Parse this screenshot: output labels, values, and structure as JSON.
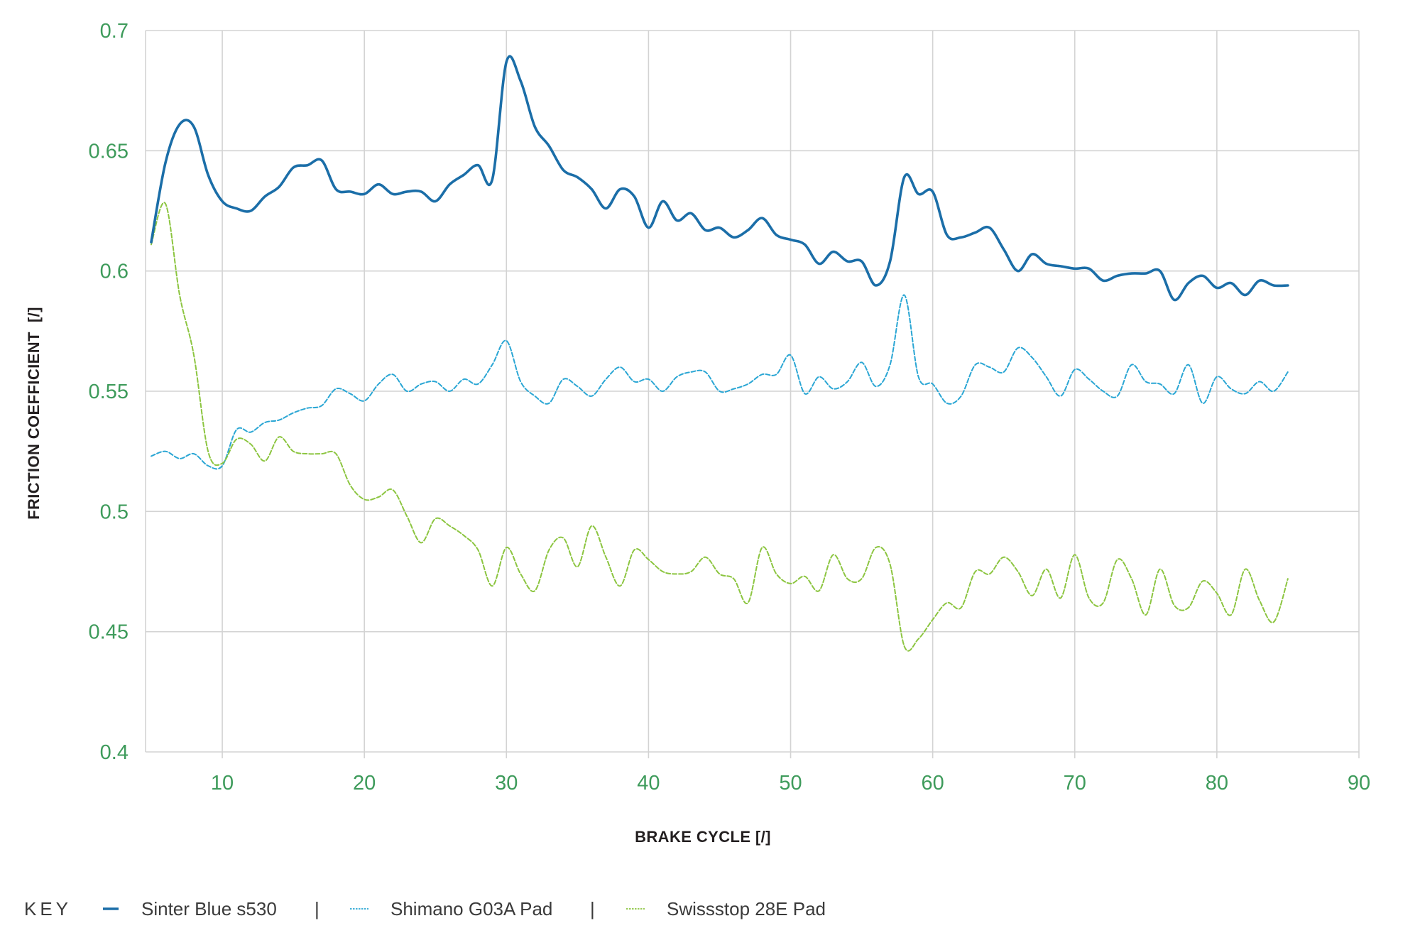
{
  "chart_data": {
    "type": "line",
    "xlabel": "BRAKE CYCLE [/]",
    "ylabel": "FRICTION COEFFICIENT  [/]",
    "xlim": [
      4.6,
      90
    ],
    "ylim": [
      0.4,
      0.7
    ],
    "xticks": [
      "10",
      "20",
      "30",
      "40",
      "50",
      "60",
      "70",
      "80",
      "90"
    ],
    "yticks": [
      "0.4",
      "0.45",
      "0.5",
      "0.55",
      "0.6",
      "0.65",
      "0.7"
    ],
    "grid": true,
    "legend_position": "bottom-left",
    "legend_title": "KEY",
    "legend_separator": "|",
    "x": [
      5,
      6,
      7,
      8,
      9,
      10,
      11,
      12,
      13,
      14,
      15,
      16,
      17,
      18,
      19,
      20,
      21,
      22,
      23,
      24,
      25,
      26,
      27,
      28,
      29,
      30,
      31,
      32,
      33,
      34,
      35,
      36,
      37,
      38,
      39,
      40,
      41,
      42,
      43,
      44,
      45,
      46,
      47,
      48,
      49,
      50,
      51,
      52,
      53,
      54,
      55,
      56,
      57,
      58,
      59,
      60,
      61,
      62,
      63,
      64,
      65,
      66,
      67,
      68,
      69,
      70,
      71,
      72,
      73,
      74,
      75,
      76,
      77,
      78,
      79,
      80,
      81,
      82,
      83,
      84,
      85
    ],
    "series": [
      {
        "name": "Sinter Blue s530",
        "style": "solid",
        "color": "#1b6ea8",
        "values": [
          0.612,
          0.645,
          0.661,
          0.66,
          0.64,
          0.629,
          0.626,
          0.625,
          0.631,
          0.635,
          0.643,
          0.644,
          0.646,
          0.634,
          0.633,
          0.632,
          0.636,
          0.632,
          0.633,
          0.633,
          0.629,
          0.636,
          0.64,
          0.644,
          0.638,
          0.687,
          0.679,
          0.66,
          0.652,
          0.642,
          0.639,
          0.634,
          0.626,
          0.634,
          0.631,
          0.618,
          0.629,
          0.621,
          0.624,
          0.617,
          0.618,
          0.614,
          0.617,
          0.622,
          0.615,
          0.613,
          0.611,
          0.603,
          0.608,
          0.604,
          0.604,
          0.594,
          0.604,
          0.639,
          0.632,
          0.633,
          0.615,
          0.614,
          0.616,
          0.618,
          0.609,
          0.6,
          0.607,
          0.603,
          0.602,
          0.601,
          0.601,
          0.596,
          0.598,
          0.599,
          0.599,
          0.6,
          0.588,
          0.595,
          0.598,
          0.593,
          0.595,
          0.59,
          0.596,
          0.594,
          0.594
        ]
      },
      {
        "name": "Shimano G03A Pad",
        "style": "dashed",
        "color": "#2aa6d4",
        "values": [
          0.523,
          0.525,
          0.522,
          0.524,
          0.519,
          0.519,
          0.534,
          0.533,
          0.537,
          0.538,
          0.541,
          0.543,
          0.544,
          0.551,
          0.549,
          0.546,
          0.553,
          0.557,
          0.55,
          0.553,
          0.554,
          0.55,
          0.555,
          0.553,
          0.561,
          0.571,
          0.554,
          0.548,
          0.545,
          0.555,
          0.552,
          0.548,
          0.555,
          0.56,
          0.554,
          0.555,
          0.55,
          0.556,
          0.558,
          0.558,
          0.55,
          0.551,
          0.553,
          0.557,
          0.557,
          0.565,
          0.549,
          0.556,
          0.551,
          0.554,
          0.562,
          0.552,
          0.561,
          0.59,
          0.556,
          0.553,
          0.545,
          0.548,
          0.561,
          0.56,
          0.558,
          0.568,
          0.564,
          0.556,
          0.548,
          0.559,
          0.555,
          0.55,
          0.548,
          0.561,
          0.554,
          0.553,
          0.549,
          0.561,
          0.545,
          0.556,
          0.551,
          0.549,
          0.554,
          0.55,
          0.558
        ]
      },
      {
        "name": "Swissstop 28E Pad",
        "style": "dashed",
        "color": "#8cc540",
        "values": [
          0.611,
          0.628,
          0.59,
          0.565,
          0.525,
          0.52,
          0.53,
          0.528,
          0.521,
          0.531,
          0.525,
          0.524,
          0.524,
          0.524,
          0.511,
          0.505,
          0.506,
          0.509,
          0.498,
          0.487,
          0.497,
          0.494,
          0.49,
          0.484,
          0.469,
          0.485,
          0.474,
          0.467,
          0.484,
          0.489,
          0.477,
          0.494,
          0.481,
          0.469,
          0.484,
          0.48,
          0.475,
          0.474,
          0.475,
          0.481,
          0.474,
          0.472,
          0.462,
          0.485,
          0.474,
          0.47,
          0.473,
          0.467,
          0.482,
          0.472,
          0.472,
          0.485,
          0.478,
          0.444,
          0.447,
          0.455,
          0.462,
          0.46,
          0.475,
          0.474,
          0.481,
          0.475,
          0.465,
          0.476,
          0.464,
          0.482,
          0.464,
          0.462,
          0.48,
          0.472,
          0.457,
          0.476,
          0.461,
          0.46,
          0.471,
          0.466,
          0.457,
          0.476,
          0.463,
          0.454,
          0.472
        ]
      }
    ]
  },
  "colors": {
    "tick_label": "#3e9b5b",
    "grid": "#d3d3d3",
    "axis_title": "#231f20",
    "legend_text": "#3a3a3a"
  }
}
